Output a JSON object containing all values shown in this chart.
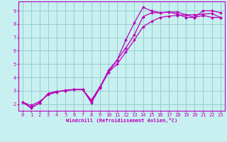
{
  "xlabel": "Windchill (Refroidissement éolien,°C)",
  "xlim": [
    -0.5,
    23.5
  ],
  "ylim": [
    1.5,
    9.7
  ],
  "xticks": [
    0,
    1,
    2,
    3,
    4,
    5,
    6,
    7,
    8,
    9,
    10,
    11,
    12,
    13,
    14,
    15,
    16,
    17,
    18,
    19,
    20,
    21,
    22,
    23
  ],
  "yticks": [
    2,
    3,
    4,
    5,
    6,
    7,
    8,
    9
  ],
  "bg_color": "#c8f0f0",
  "line_color": "#bb00bb",
  "grid_color": "#99cccc",
  "line1_x": [
    0,
    1,
    2,
    3,
    4,
    5,
    6,
    7,
    8,
    9,
    10,
    11,
    12,
    13,
    14,
    15,
    16,
    17,
    18,
    19,
    20,
    21,
    22,
    23
  ],
  "line1_y": [
    2.15,
    1.7,
    2.1,
    2.8,
    2.95,
    3.0,
    3.1,
    3.1,
    2.1,
    3.2,
    4.4,
    5.3,
    6.8,
    8.1,
    9.25,
    9.0,
    8.85,
    8.9,
    8.75,
    8.5,
    8.5,
    9.0,
    9.0,
    8.85
  ],
  "line2_x": [
    0,
    1,
    2,
    3,
    4,
    5,
    6,
    7,
    8,
    9,
    10,
    11,
    12,
    13,
    14,
    15,
    16,
    17,
    18,
    19,
    20,
    21,
    22,
    23
  ],
  "line2_y": [
    2.15,
    1.75,
    2.1,
    2.8,
    2.95,
    3.0,
    3.1,
    3.1,
    2.2,
    3.25,
    4.55,
    5.3,
    6.2,
    7.2,
    8.55,
    8.85,
    8.85,
    8.9,
    8.9,
    8.7,
    8.5,
    8.65,
    8.5,
    8.5
  ],
  "line3_x": [
    0,
    1,
    2,
    3,
    4,
    5,
    6,
    7,
    8,
    9,
    10,
    11,
    12,
    13,
    14,
    15,
    16,
    17,
    18,
    19,
    20,
    21,
    22,
    23
  ],
  "line3_y": [
    2.15,
    1.9,
    2.2,
    2.7,
    2.9,
    3.05,
    3.1,
    3.1,
    2.3,
    3.3,
    4.4,
    5.0,
    5.9,
    6.8,
    7.8,
    8.2,
    8.5,
    8.6,
    8.65,
    8.7,
    8.7,
    8.75,
    8.8,
    8.5
  ]
}
